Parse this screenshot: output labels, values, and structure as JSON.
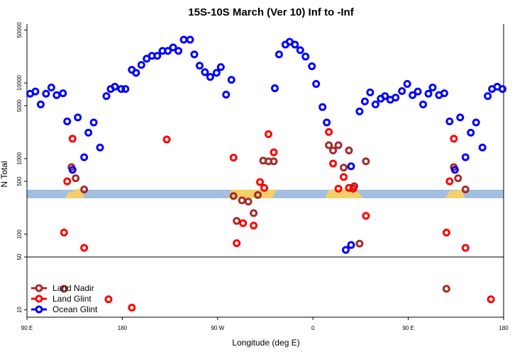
{
  "chart_data": {
    "type": "scatter",
    "title": "15S-10S March (Ver 10)   Inf to -Inf",
    "x_label": "Longitude (deg E)",
    "y_label": "N Total",
    "log_y": true,
    "legend": "bottom-left",
    "xlim": [
      90,
      540
    ],
    "ylim": [
      8,
      60000
    ],
    "xticks": [
      {
        "value": 90,
        "label": "90 E"
      },
      180,
      {
        "value": 270,
        "label": "90 W"
      },
      {
        "value": 360,
        "label": "0"
      },
      {
        "value": 450,
        "label": "90 E"
      },
      {
        "value": 540,
        "label": "180"
      }
    ],
    "yticks": [
      10,
      50,
      100,
      500,
      1000,
      5000,
      10000,
      50000
    ],
    "series": [
      {
        "name": "Land Nadir",
        "color": "#a52a2a",
        "x": [
          132,
          136,
          144,
          285,
          288,
          293,
          299,
          304,
          308,
          313,
          318,
          323,
          375,
          379,
          384,
          389,
          394,
          399,
          404,
          410,
          493,
          497,
          504,
          125,
          486
        ],
        "values": [
          770,
          550,
          390,
          320,
          150,
          280,
          270,
          190,
          330,
          940,
          920,
          920,
          1500,
          1280,
          1500,
          760,
          1280,
          430,
          75,
          920,
          770,
          550,
          390,
          19,
          19
        ]
      },
      {
        "name": "Land Glint",
        "color": "#ff0000",
        "x": [
          125,
          128,
          133,
          144,
          222,
          285,
          288,
          294,
          304,
          310,
          314,
          318,
          323,
          375,
          379,
          384,
          389,
          394,
          398,
          410,
          486,
          489,
          493,
          504,
          167,
          189,
          528
        ],
        "values": [
          105,
          500,
          1830,
          66,
          1790,
          1030,
          76,
          140,
          130,
          490,
          410,
          2100,
          1210,
          2250,
          860,
          400,
          570,
          410,
          400,
          175,
          105,
          500,
          1830,
          66,
          13.8,
          10.7,
          13.8
        ]
      },
      {
        "name": "Ocean Glint",
        "color": "#0000ff",
        "x": [
          93,
          98,
          103,
          108,
          113,
          118,
          124,
          128,
          133,
          138,
          144,
          148,
          153,
          159,
          165,
          169,
          173,
          179,
          183,
          189,
          193,
          198,
          203,
          208,
          213,
          218,
          223,
          228,
          233,
          238,
          244,
          248,
          253,
          258,
          263,
          269,
          273,
          278,
          283,
          324,
          328,
          334,
          338,
          343,
          348,
          353,
          359,
          363,
          369,
          373,
          391,
          396,
          396,
          404,
          409,
          414,
          419,
          424,
          428,
          433,
          438,
          444,
          449,
          454,
          459,
          464,
          469,
          473,
          479,
          484,
          489,
          494,
          499,
          504,
          509,
          514,
          520,
          525,
          529,
          534,
          539
        ],
        "values": [
          7200,
          7700,
          5200,
          7200,
          8700,
          6900,
          7300,
          3100,
          710,
          3500,
          1040,
          2200,
          3000,
          1400,
          6700,
          8300,
          8900,
          8300,
          8300,
          14900,
          13600,
          17300,
          20900,
          22800,
          22800,
          26500,
          26500,
          29500,
          26500,
          37300,
          37300,
          23800,
          16900,
          13900,
          12000,
          13600,
          16200,
          7000,
          11000,
          8500,
          23800,
          32100,
          35000,
          32100,
          27100,
          22300,
          16600,
          9700,
          4800,
          3000,
          62,
          790,
          72,
          4200,
          5700,
          7500,
          5200,
          6200,
          6700,
          6000,
          6400,
          7800,
          9700,
          6900,
          7700,
          5200,
          7200,
          8700,
          6900,
          7300,
          3100,
          710,
          3500,
          1040,
          2200,
          3000,
          1400,
          6700,
          8300,
          8900,
          8300
        ]
      }
    ]
  }
}
